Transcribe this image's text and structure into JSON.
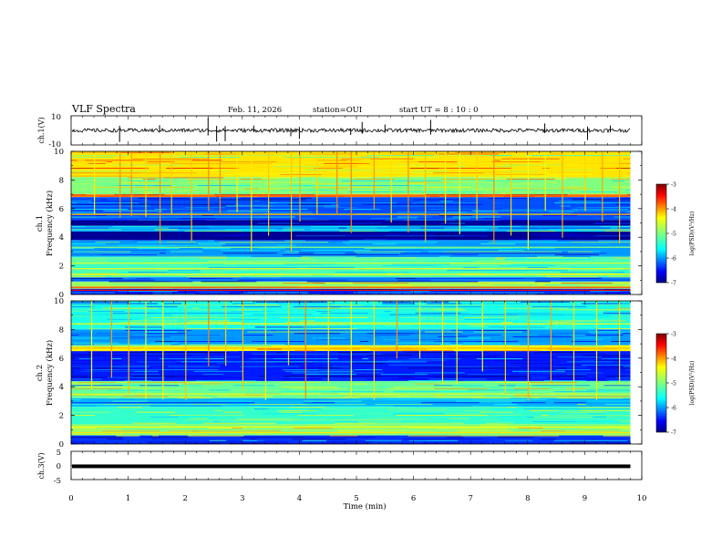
{
  "header": {
    "title": "VLF Spectra",
    "date": "Feb. 11, 2026",
    "station": "station=OUI",
    "start": "start UT =  8 : 10 : 0"
  },
  "chart_data": [
    {
      "type": "line",
      "id": "ch1-waveform",
      "ylabel": "ch.1(V)",
      "ylim": [
        -10,
        10
      ],
      "yticks": [
        "10",
        "-10"
      ],
      "xlim": [
        0,
        10
      ],
      "baseline": 0,
      "spikes_min": [
        0.85,
        1.55,
        2.4,
        2.55,
        2.7,
        3.2,
        3.85,
        4.0,
        4.9,
        5.1,
        5.5,
        6.3,
        8.3,
        9.05,
        9.45
      ],
      "data_end_min": 9.8
    },
    {
      "type": "heatmap",
      "id": "ch1-spectrogram",
      "ylabel": "ch.1\nFrequency (kHz)",
      "ylabel_line1": "ch.1",
      "ylabel_line2": "Frequency (kHz)",
      "ylim": [
        0,
        10
      ],
      "yticks": [
        "0",
        "2",
        "4",
        "6",
        "8",
        "10"
      ],
      "xlim": [
        0,
        10
      ],
      "data_end_min": 9.8,
      "bands_khz": [
        {
          "f0": 8.2,
          "f1": 10.0,
          "level": -4.4
        },
        {
          "f0": 7.0,
          "f1": 8.2,
          "level": -5.0
        },
        {
          "f0": 6.8,
          "f1": 7.0,
          "level": -4.0
        },
        {
          "f0": 5.2,
          "f1": 6.8,
          "level": -6.2
        },
        {
          "f0": 4.8,
          "f1": 5.2,
          "level": -6.9
        },
        {
          "f0": 4.4,
          "f1": 4.8,
          "level": -5.8
        },
        {
          "f0": 3.8,
          "f1": 4.4,
          "level": -6.9
        },
        {
          "f0": 2.6,
          "f1": 3.8,
          "level": -5.9
        },
        {
          "f0": 1.2,
          "f1": 2.6,
          "level": -5.2
        },
        {
          "f0": 0.9,
          "f1": 1.2,
          "level": -6.0
        },
        {
          "f0": 0.4,
          "f1": 0.9,
          "level": -4.9
        },
        {
          "f0": 0.0,
          "f1": 0.4,
          "level": -6.4
        }
      ],
      "lines_khz": [
        {
          "f": 0.3,
          "level": -3.4
        },
        {
          "f": 0.5,
          "level": -3.8
        },
        {
          "f": 1.4,
          "level": -4.5
        },
        {
          "f": 1.8,
          "level": -4.6
        },
        {
          "f": 2.2,
          "level": -4.7
        },
        {
          "f": 3.3,
          "level": -5.0
        },
        {
          "f": 5.6,
          "level": -4.2
        },
        {
          "f": 6.9,
          "level": -3.9
        }
      ],
      "spikes_min": [
        0.4,
        0.85,
        1.05,
        1.3,
        1.55,
        1.75,
        2.1,
        2.4,
        2.6,
        2.9,
        3.15,
        3.45,
        3.85,
        4.0,
        4.3,
        4.65,
        4.9,
        5.3,
        5.6,
        5.9,
        6.2,
        6.55,
        6.8,
        7.1,
        7.4,
        7.7,
        8.0,
        8.3,
        8.6,
        9.0,
        9.3,
        9.6
      ]
    },
    {
      "type": "heatmap",
      "id": "ch2-spectrogram",
      "ylabel": "ch.2\nFrequency (kHz)",
      "ylabel_line1": "ch.2",
      "ylabel_line2": "Frequency (kHz)",
      "ylim": [
        0,
        10
      ],
      "yticks": [
        "0",
        "2",
        "4",
        "6",
        "8",
        "10"
      ],
      "xlim": [
        0,
        10
      ],
      "data_end_min": 9.8,
      "bands_khz": [
        {
          "f0": 8.0,
          "f1": 10.0,
          "level": -5.4
        },
        {
          "f0": 6.9,
          "f1": 8.0,
          "level": -5.9
        },
        {
          "f0": 6.5,
          "f1": 6.9,
          "level": -4.5
        },
        {
          "f0": 4.4,
          "f1": 6.5,
          "level": -6.4
        },
        {
          "f0": 3.2,
          "f1": 4.4,
          "level": -5.1
        },
        {
          "f0": 2.6,
          "f1": 3.2,
          "level": -5.8
        },
        {
          "f0": 1.4,
          "f1": 2.6,
          "level": -5.3
        },
        {
          "f0": 0.6,
          "f1": 1.4,
          "level": -5.0
        },
        {
          "f0": 0.0,
          "f1": 0.6,
          "level": -6.3
        }
      ],
      "lines_khz": [
        {
          "f": 0.8,
          "level": -4.4
        },
        {
          "f": 1.2,
          "level": -4.5
        },
        {
          "f": 3.5,
          "level": -4.6
        },
        {
          "f": 6.7,
          "level": -4.2
        },
        {
          "f": 8.4,
          "level": -4.6
        }
      ],
      "spikes_min": [
        0.35,
        0.7,
        1.0,
        1.3,
        1.6,
        2.0,
        2.4,
        2.7,
        3.0,
        3.4,
        3.8,
        4.1,
        4.5,
        4.9,
        5.3,
        5.7,
        6.1,
        6.5,
        6.75,
        7.2,
        7.6,
        8.0,
        8.4,
        8.8,
        9.2,
        9.6
      ]
    },
    {
      "type": "line",
      "id": "ch3-waveform",
      "ylabel": "ch.3(V)",
      "ylim": [
        -5,
        5
      ],
      "yticks": [
        "5",
        "0",
        "-5"
      ],
      "xlim": [
        0,
        10
      ],
      "value_v": -0.3,
      "data_end_min": 9.8
    }
  ],
  "xaxis": {
    "label": "Time (min)",
    "ticks": [
      "0",
      "1",
      "2",
      "3",
      "4",
      "5",
      "6",
      "7",
      "8",
      "9",
      "10"
    ],
    "range": [
      0,
      10
    ]
  },
  "colorbars": [
    {
      "label": "log(PSD)(V²/Hz)",
      "range": [
        -7,
        -3
      ],
      "ticks": [
        "-3",
        "-4",
        "-5",
        "-6",
        "-7"
      ]
    },
    {
      "label": "log(PSD)(V²/Hz)",
      "range": [
        -7,
        -3
      ],
      "ticks": [
        "-3",
        "-4",
        "-5",
        "-6",
        "-7"
      ]
    }
  ],
  "colors": {
    "jet_stops": [
      "#00007f",
      "#0000ff",
      "#0080ff",
      "#00ffff",
      "#80ff80",
      "#ffff00",
      "#ff8000",
      "#ff0000",
      "#7f0000"
    ],
    "axis": "#000000",
    "trace": "#000000"
  }
}
